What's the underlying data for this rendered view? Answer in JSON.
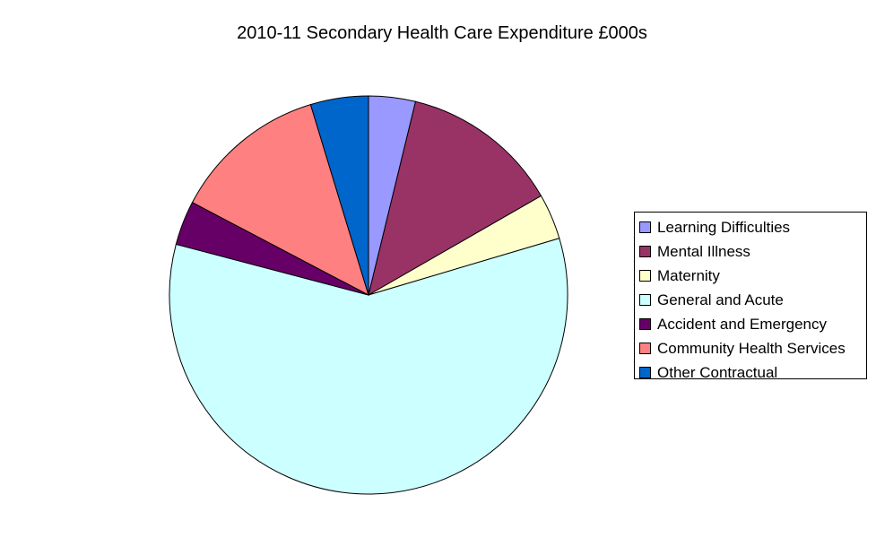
{
  "title": "2010-11 Secondary Health Care Expenditure £000s",
  "legend": [
    {
      "label": "Learning Difficulties",
      "color": "#9999FF"
    },
    {
      "label": "Mental Illness",
      "color": "#993366"
    },
    {
      "label": "Maternity",
      "color": "#FFFFCC"
    },
    {
      "label": "General and Acute",
      "color": "#CCFFFF"
    },
    {
      "label": "Accident and Emergency",
      "color": "#660066"
    },
    {
      "label": "Community Health Services",
      "color": "#FF8080"
    },
    {
      "label": "Other Contractual",
      "color": "#0066CC"
    }
  ],
  "chart_data": {
    "type": "pie",
    "title": "2010-11 Secondary Health Care Expenditure £000s",
    "categories": [
      "Learning Difficulties",
      "Mental Illness",
      "Maternity",
      "General and Acute",
      "Accident and Emergency",
      "Community Health Services",
      "Other Contractual"
    ],
    "values": [
      3.8,
      12.9,
      3.7,
      58.7,
      3.6,
      12.6,
      4.7
    ],
    "value_unit": "percent of total (estimated)",
    "colors": [
      "#9999FF",
      "#993366",
      "#FFFFCC",
      "#CCFFFF",
      "#660066",
      "#FF8080",
      "#0066CC"
    ],
    "start_angle": "12 o'clock, clockwise",
    "legend_position": "right"
  }
}
